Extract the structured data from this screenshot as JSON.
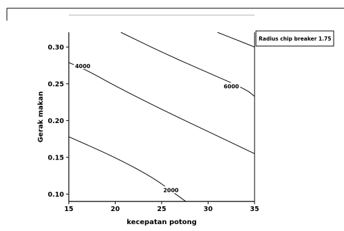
{
  "chart_data": {
    "type": "contour",
    "xlabel": "kecepatan potong",
    "ylabel": "Gerak makan",
    "xlim": [
      15,
      35
    ],
    "ylim": [
      0.09,
      0.32
    ],
    "xticks": [
      15,
      20,
      25,
      30,
      35
    ],
    "yticks": [
      0.1,
      0.15,
      0.2,
      0.25,
      0.3
    ],
    "ytick_labels": [
      "0.10",
      "0.15",
      "0.20",
      "0.25",
      "0.30"
    ],
    "legend": {
      "placement": "top-right, outside plot",
      "text": "Radius chip breaker 1.75"
    },
    "contours": [
      {
        "level": "2000",
        "points": [
          [
            15.0,
            0.178
          ],
          [
            20.0,
            0.15
          ],
          [
            24.0,
            0.123
          ],
          [
            26.5,
            0.1
          ],
          [
            27.6,
            0.09
          ]
        ],
        "label_at": [
          26.0,
          0.104
        ]
      },
      {
        "level": "4000",
        "points": [
          [
            15.0,
            0.279
          ],
          [
            17.0,
            0.268
          ],
          [
            20.0,
            0.247
          ],
          [
            25.0,
            0.215
          ],
          [
            30.0,
            0.185
          ],
          [
            35.0,
            0.155
          ]
        ],
        "label_at": [
          16.5,
          0.273
        ]
      },
      {
        "level": "6000",
        "points": [
          [
            20.6,
            0.32
          ],
          [
            25.0,
            0.293
          ],
          [
            30.0,
            0.265
          ],
          [
            34.0,
            0.243
          ],
          [
            35.0,
            0.233
          ]
        ],
        "label_at": [
          32.5,
          0.245
        ]
      },
      {
        "level": "",
        "points": [
          [
            31.0,
            0.32
          ],
          [
            33.0,
            0.31
          ],
          [
            35.0,
            0.3
          ]
        ]
      }
    ]
  }
}
